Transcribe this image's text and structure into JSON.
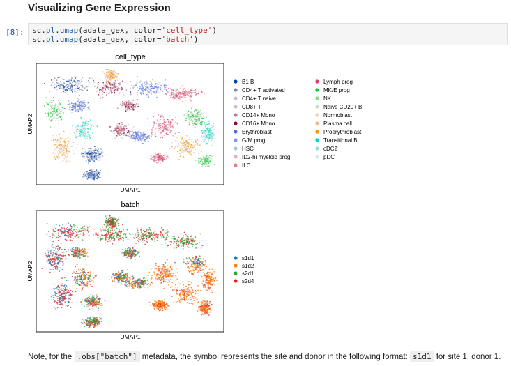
{
  "heading": "Visualizing Gene Expression",
  "cell": {
    "prompt": "[8]:",
    "line1": {
      "a": "sc",
      "b": ".",
      "c": "pl",
      "d": ".",
      "e": "umap",
      "f": "(adata_gex, color=",
      "g": "'cell_type'",
      "h": ")"
    },
    "line2": {
      "a": "sc",
      "b": ".",
      "c": "pl",
      "d": ".",
      "e": "umap",
      "f": "(adata_gex, color=",
      "g": "'batch'",
      "h": ")"
    }
  },
  "chart_data": [
    {
      "type": "scatter",
      "title": "cell_type",
      "xlabel": "UMAP1",
      "ylabel": "UMAP2",
      "grid": false,
      "legend_placement": "right, two columns",
      "legend": [
        {
          "label": "B1 B",
          "color": "#023fa5"
        },
        {
          "label": "CD4+ T activated",
          "color": "#7d87b9"
        },
        {
          "label": "CD4+ T naive",
          "color": "#bec1d4"
        },
        {
          "label": "CD8+ T",
          "color": "#d6bcc0"
        },
        {
          "label": "CD14+ Mono",
          "color": "#bb7784"
        },
        {
          "label": "CD16+ Mono",
          "color": "#8e063b"
        },
        {
          "label": "Erythroblast",
          "color": "#4a6fe3"
        },
        {
          "label": "G/M prog",
          "color": "#8595e1"
        },
        {
          "label": "HSC",
          "color": "#b5bbe3"
        },
        {
          "label": "ID2-hi myeloid prog",
          "color": "#e6afb9"
        },
        {
          "label": "ILC",
          "color": "#e07b91"
        },
        {
          "label": "Lymph prog",
          "color": "#d33f6a"
        },
        {
          "label": "MK/E prog",
          "color": "#11c638"
        },
        {
          "label": "NK",
          "color": "#8dd593"
        },
        {
          "label": "Naive CD20+ B",
          "color": "#c6dec7"
        },
        {
          "label": "Normoblast",
          "color": "#ead3c6"
        },
        {
          "label": "Plasma cell",
          "color": "#f0b98d"
        },
        {
          "label": "Proerythroblast",
          "color": "#ef9708"
        },
        {
          "label": "Transitional B",
          "color": "#0fcfc0"
        },
        {
          "label": "cDC2",
          "color": "#9cded6"
        },
        {
          "label": "pDC",
          "color": "#d5eae7"
        }
      ]
    },
    {
      "type": "scatter",
      "title": "batch",
      "xlabel": "UMAP1",
      "ylabel": "UMAP2",
      "grid": false,
      "legend_placement": "right",
      "legend": [
        {
          "label": "s1d1",
          "color": "#1f77b4"
        },
        {
          "label": "s1d2",
          "color": "#ff7f0e"
        },
        {
          "label": "s2d1",
          "color": "#2ca02c"
        },
        {
          "label": "s2d4",
          "color": "#d62728"
        }
      ]
    }
  ],
  "note": {
    "pre": "Note, for the",
    "code1": ".obs[\"batch\"]",
    "mid": "metadata, the symbol represents the site and donor in the following format:",
    "code2": "s1d1",
    "post": "for site 1, donor 1."
  }
}
